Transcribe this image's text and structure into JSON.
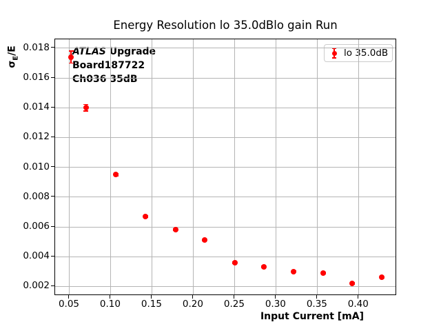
{
  "chart_data": {
    "type": "scatter",
    "title": "Energy Resolution lo 35.0dBlo gain Run",
    "xlabel": "Input Current [mA]",
    "ylabel": "σ_E/E",
    "ylabel_parts": {
      "sigma": "σ",
      "sub": "E",
      "rest": "/E"
    },
    "series": [
      {
        "name": "lo 35.0dB",
        "color": "#ff0000",
        "marker": "circle-with-errorbars",
        "x": [
          0.052,
          0.07,
          0.106,
          0.142,
          0.178,
          0.213,
          0.25,
          0.285,
          0.321,
          0.357,
          0.392,
          0.428
        ],
        "y": [
          0.0174,
          0.014,
          0.0095,
          0.0067,
          0.0058,
          0.0051,
          0.0036,
          0.0033,
          0.003,
          0.0029,
          0.0022,
          0.0026
        ],
        "yerr": [
          0.0004,
          0.00022,
          8e-05,
          6e-05,
          6e-05,
          5e-05,
          5e-05,
          5e-05,
          4e-05,
          4e-05,
          4e-05,
          4e-05
        ]
      }
    ],
    "xlim": [
      0.0325,
      0.446
    ],
    "ylim": [
      0.00137,
      0.0186
    ],
    "xtick_values": [
      0.05,
      0.1,
      0.15,
      0.2,
      0.25,
      0.3,
      0.35,
      0.4
    ],
    "xtick_labels": [
      "0.05",
      "0.10",
      "0.15",
      "0.20",
      "0.25",
      "0.30",
      "0.35",
      "0.40"
    ],
    "ytick_values": [
      0.002,
      0.004,
      0.006,
      0.008,
      0.01,
      0.012,
      0.014,
      0.016,
      0.018
    ],
    "ytick_labels": [
      "0.002",
      "0.004",
      "0.006",
      "0.008",
      "0.010",
      "0.012",
      "0.014",
      "0.016",
      "0.018"
    ],
    "grid": true,
    "grid_color": "#b4b4b4",
    "legend_position": "upper right",
    "annotation": {
      "italic": "ATLAS",
      "line1_rest": " Upgrade",
      "line2": "Board187722",
      "line3": "Ch036 35dB"
    }
  }
}
